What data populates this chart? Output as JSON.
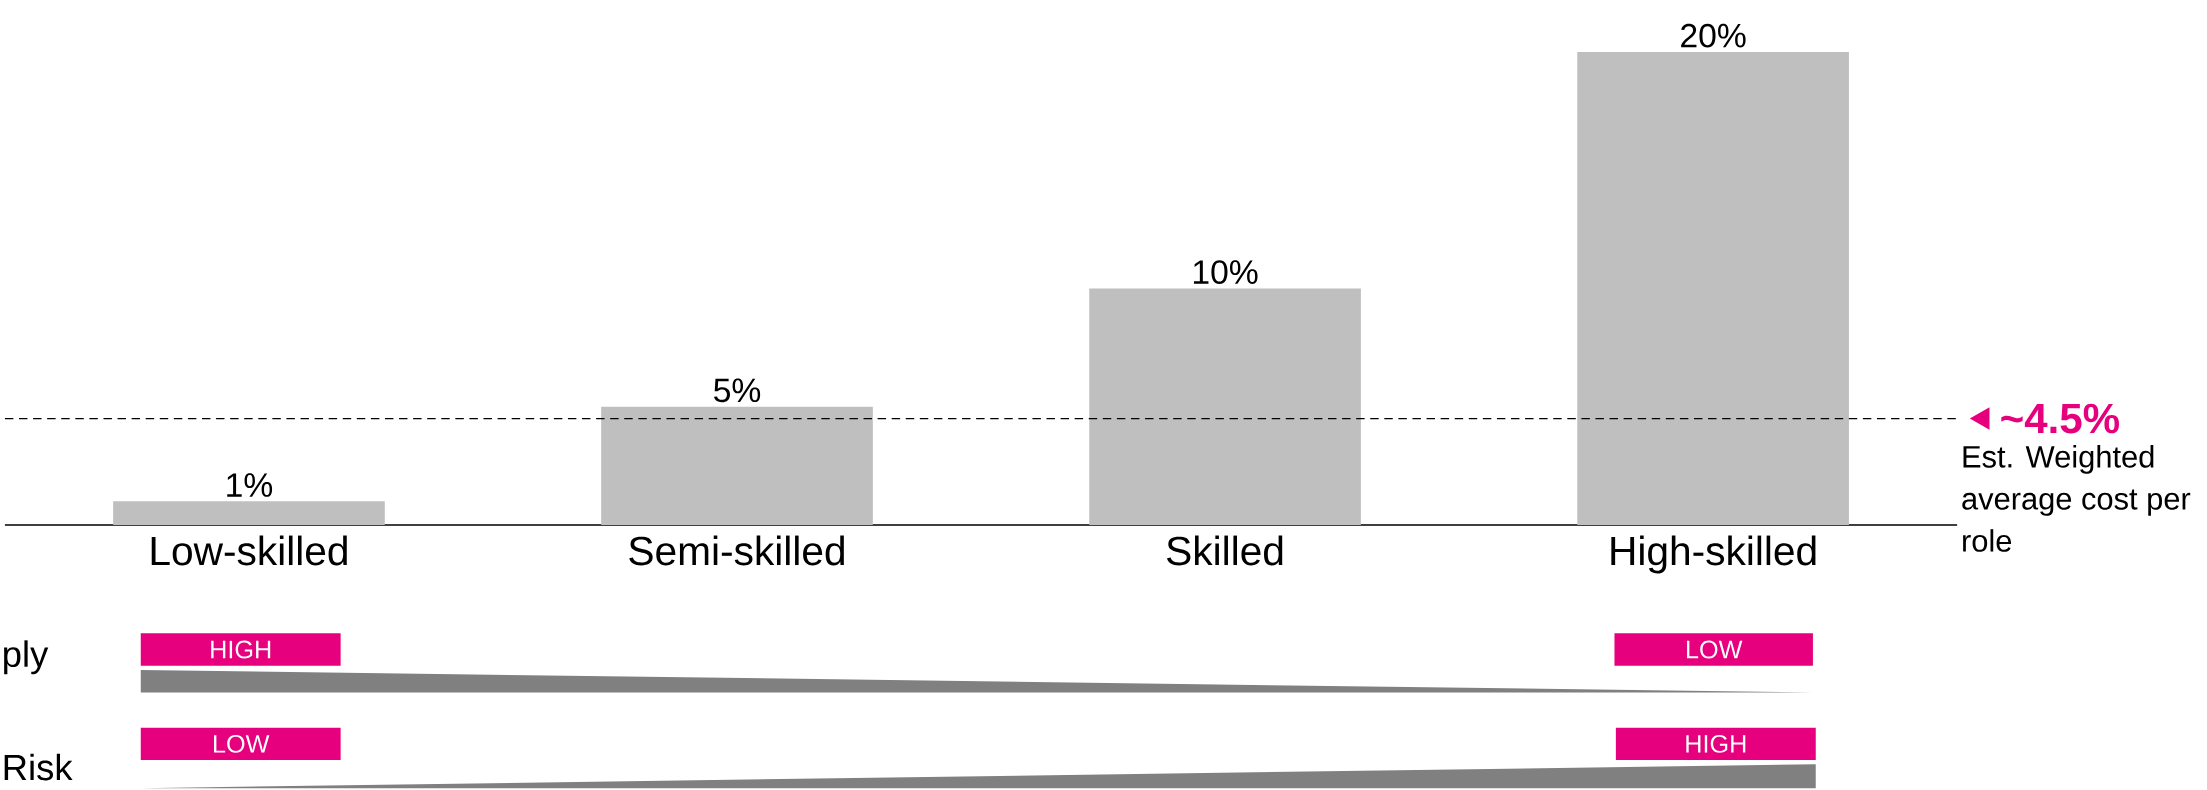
{
  "chart_data": {
    "type": "bar",
    "categories": [
      "Low-skilled",
      "Semi-skilled",
      "Skilled",
      "High-skilled"
    ],
    "values": [
      1,
      5,
      10,
      20
    ],
    "color": "#bfbfbf",
    "value_labels": [
      "1%",
      "5%",
      "10%",
      "20%"
    ],
    "ref_lines": [
      {
        "axis": "y",
        "value": 4.5,
        "label": "~4.5%",
        "color": "#000000",
        "line_style": "dashed"
      }
    ],
    "annotations": [
      "Est. Weighted average cost per role",
      "ply",
      "HIGH",
      "LOW",
      "Risk",
      "LOW",
      "HIGH"
    ]
  }
}
